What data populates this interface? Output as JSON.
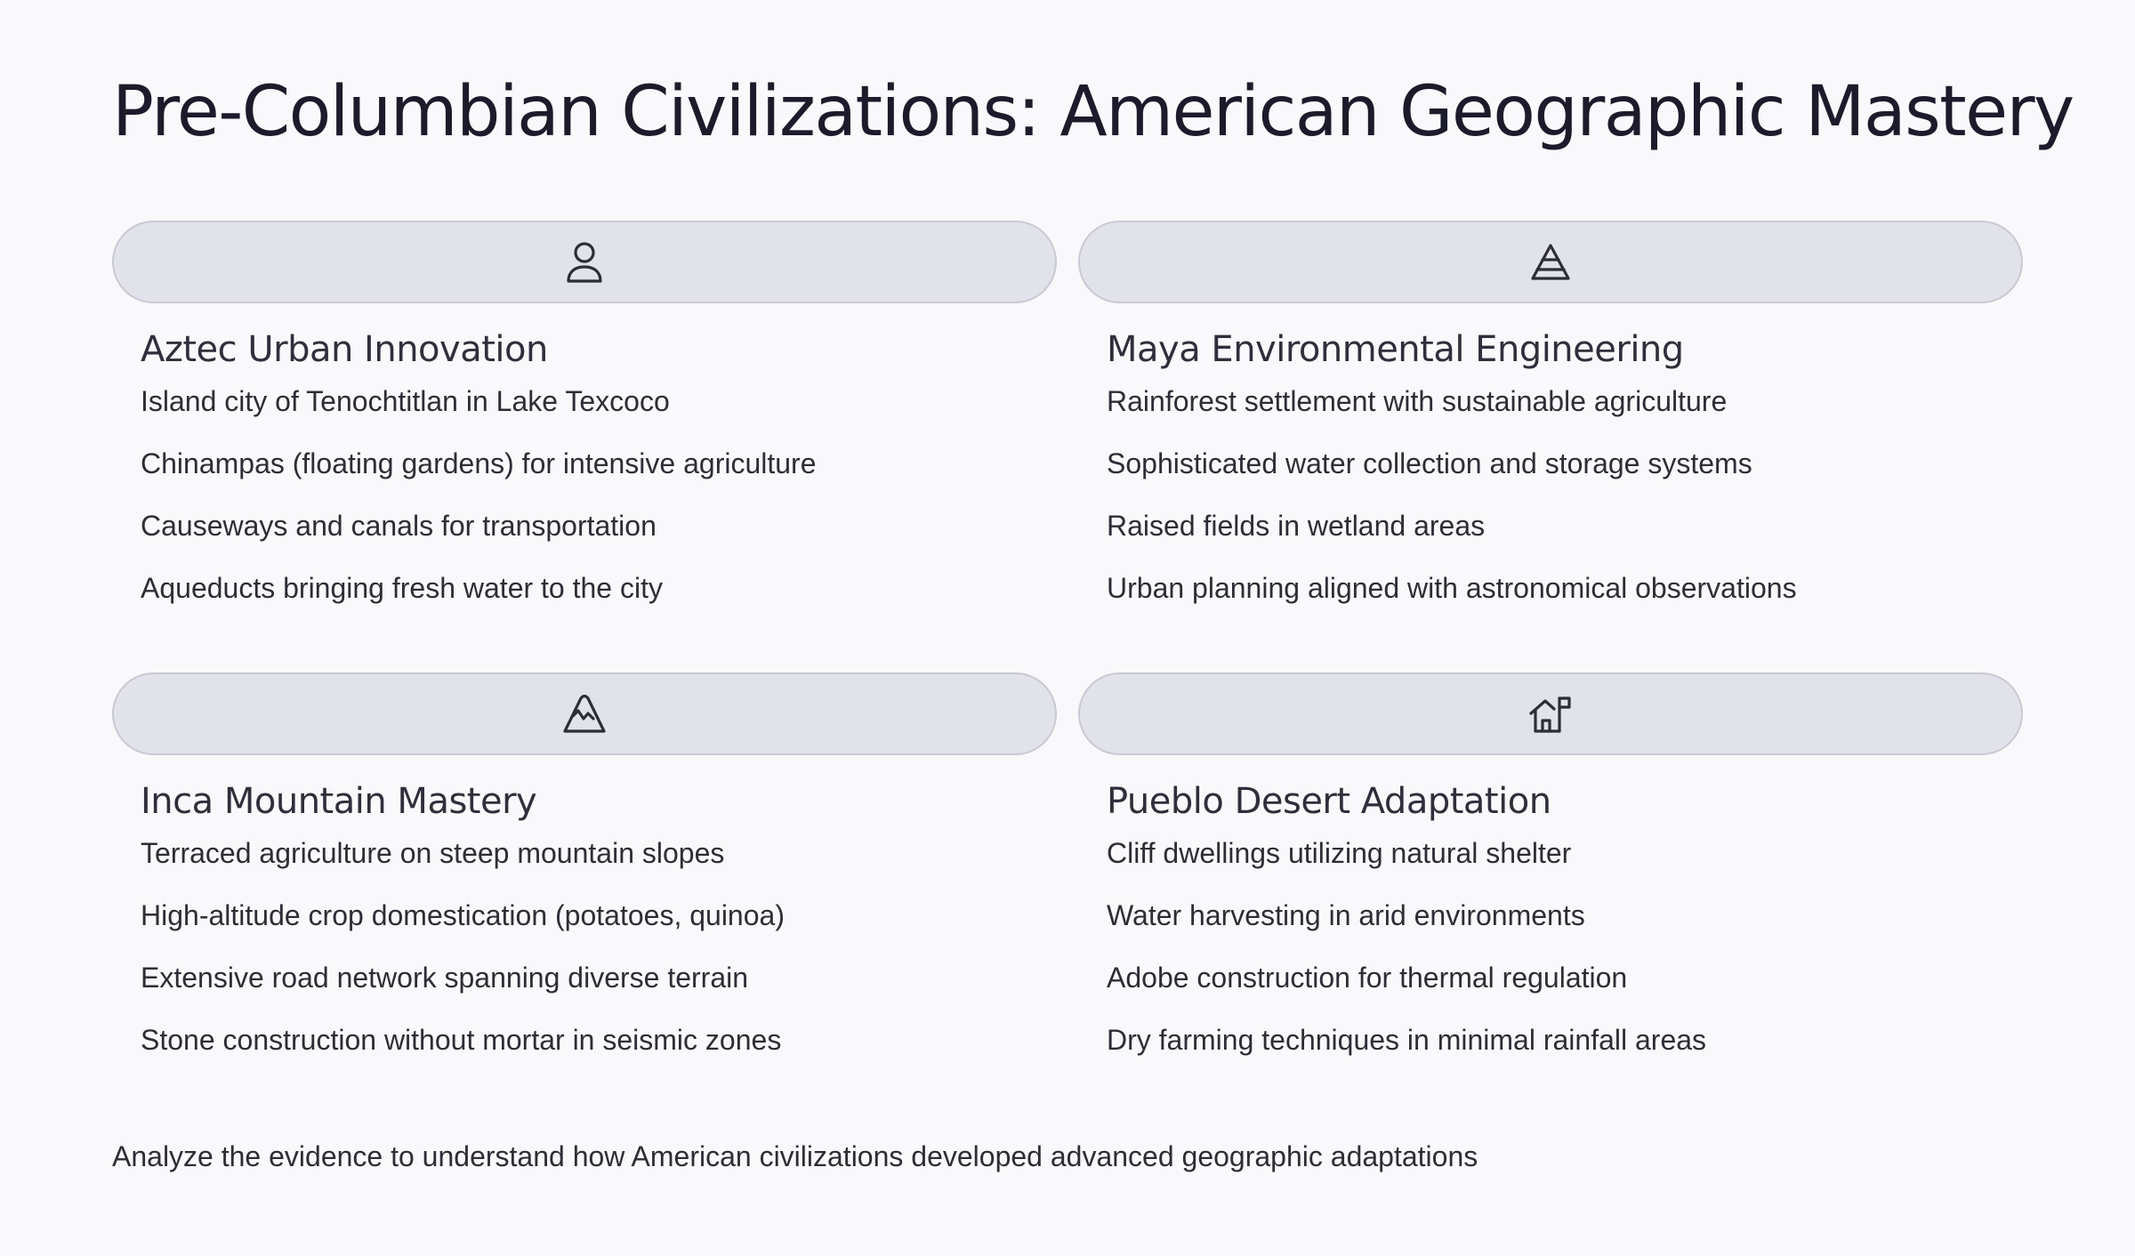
{
  "page": {
    "title": "Pre-Columbian Civilizations: American Geographic Mastery",
    "footer": "Analyze the evidence to understand how American civilizations developed advanced geographic adaptations"
  },
  "colors": {
    "background": "#f9f9fc",
    "header_fill": "#e2e2ea",
    "header_border": "#c9c9d3",
    "text": "#2d2d36"
  },
  "cards": [
    {
      "icon": "person-icon",
      "title": "Aztec Urban Innovation",
      "items": [
        "Island city of Tenochtitlan in Lake Texcoco",
        "Chinampas (floating gardens) for intensive agriculture",
        "Causeways and canals for transportation",
        "Aqueducts bringing fresh water to the city"
      ]
    },
    {
      "icon": "pyramid-icon",
      "title": "Maya Environmental Engineering",
      "items": [
        "Rainforest settlement with sustainable agriculture",
        "Sophisticated water collection and storage systems",
        "Raised fields in wetland areas",
        "Urban planning aligned with astronomical observations"
      ]
    },
    {
      "icon": "mountain-icon",
      "title": "Inca Mountain Mastery",
      "items": [
        "Terraced agriculture on steep mountain slopes",
        "High-altitude crop domestication (potatoes, quinoa)",
        "Extensive road network spanning diverse terrain",
        "Stone construction without mortar in seismic zones"
      ]
    },
    {
      "icon": "house-flag-icon",
      "title": "Pueblo Desert Adaptation",
      "items": [
        "Cliff dwellings utilizing natural shelter",
        "Water harvesting in arid environments",
        "Adobe construction for thermal regulation",
        "Dry farming techniques in minimal rainfall areas"
      ]
    }
  ]
}
